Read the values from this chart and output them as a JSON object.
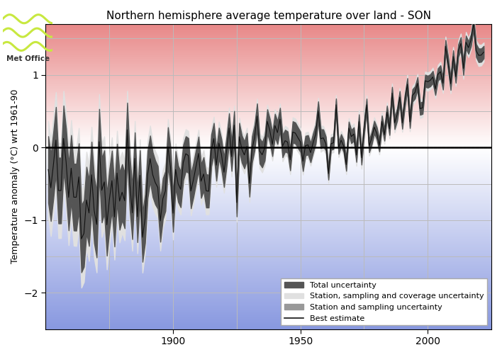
{
  "title": "Northern hemisphere average temperature over land - SON",
  "ylabel": "Temperature anomaly (°C) wrt 1961-90",
  "xlim": [
    1850,
    2025
  ],
  "ylim": [
    -2.5,
    1.7
  ],
  "yticks": [
    -2,
    -1,
    0,
    1
  ],
  "xticks": [
    1900,
    1950,
    2000
  ],
  "color_total_unc": "#555555",
  "color_coverage_unc": "#e0e0e0",
  "color_sampling_unc": "#999999",
  "color_best_estimate": "#111111",
  "zero_line_color": "#000000",
  "dashed_zero_color": "#555555",
  "grid_color": "#bbbbbb",
  "warm_top": "#e88888",
  "warm_zero": "#f8d0d0",
  "cool_zero": "#d0d8f8",
  "cool_bot": "#8898e0",
  "legend_labels": [
    "Total uncertainty",
    "Station, sampling and coverage uncertainty",
    "Station and sampling uncertainty",
    "Best estimate"
  ],
  "metoffice_text": "Met Office",
  "logo_colors": [
    "#c8e840",
    "#c8e840",
    "#c8e840"
  ]
}
